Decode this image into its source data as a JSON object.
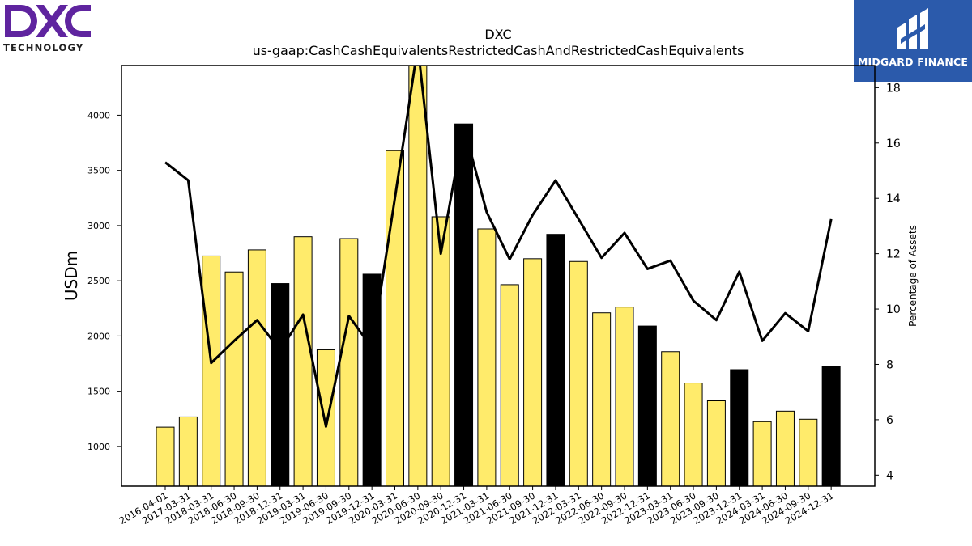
{
  "logos": {
    "left_mark": "DXC",
    "left_sub": "TECHNOLOGY",
    "left_color": "#5f249f",
    "right_text": "MIDGARD FINANCE",
    "right_bg": "#2b5aab"
  },
  "chart_data": {
    "type": "bar",
    "title": "DXC",
    "subtitle": "us-gaap:CashCashEquivalentsRestrictedCashAndRestrictedCashEquivalents",
    "ylabel": "USDm",
    "y2label": "Percentage of Assets",
    "ylim": [
      640,
      4450
    ],
    "y2lim": [
      3.6,
      18.8
    ],
    "yticks": [
      1000,
      1500,
      2000,
      2500,
      3000,
      3500,
      4000
    ],
    "y2ticks": [
      4,
      6,
      8,
      10,
      12,
      14,
      16,
      18
    ],
    "bar_color_quarter": "#ffeb6b",
    "bar_color_year_end": "#000000",
    "line_color": "#000000",
    "categories": [
      "2016-04-01",
      "2017-03-31",
      "2018-03-31",
      "2018-06-30",
      "2018-09-30",
      "2018-12-31",
      "2019-03-31",
      "2019-06-30",
      "2019-09-30",
      "2019-12-31",
      "2020-03-31",
      "2020-06-30",
      "2020-09-30",
      "2020-12-31",
      "2021-03-31",
      "2021-06-30",
      "2021-09-30",
      "2021-12-31",
      "2022-03-31",
      "2022-06-30",
      "2022-09-30",
      "2022-12-31",
      "2023-03-31",
      "2023-06-30",
      "2023-09-30",
      "2023-12-31",
      "2024-03-31",
      "2024-06-30",
      "2024-09-30",
      "2024-12-31"
    ],
    "series": [
      {
        "kind": "bar",
        "values": [
          1174,
          1267,
          2725,
          2580,
          2780,
          2475,
          2899,
          1875,
          2882,
          2560,
          3679,
          4500,
          3080,
          3921,
          2970,
          2465,
          2700,
          2921,
          2675,
          2210,
          2262,
          2090,
          1858,
          1574,
          1413,
          1695,
          1224,
          1319,
          1246,
          1724
        ],
        "year_end": [
          false,
          false,
          false,
          false,
          false,
          true,
          false,
          false,
          false,
          true,
          false,
          false,
          false,
          true,
          false,
          false,
          false,
          true,
          false,
          false,
          false,
          true,
          false,
          false,
          false,
          true,
          false,
          false,
          false,
          true
        ]
      },
      {
        "kind": "line",
        "axis": "right",
        "values": [
          15.3,
          14.65,
          8.05,
          8.85,
          9.6,
          8.5,
          9.8,
          5.75,
          9.75,
          8.6,
          14.0,
          19.5,
          12.0,
          16.6,
          13.5,
          11.8,
          13.4,
          14.65,
          13.25,
          11.85,
          12.75,
          11.45,
          11.75,
          10.3,
          9.6,
          11.35,
          8.85,
          9.85,
          9.2,
          13.25
        ]
      }
    ]
  }
}
